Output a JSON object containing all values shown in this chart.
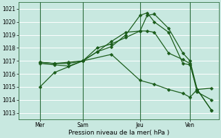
{
  "xlabel": "Pression niveau de la mer( hPa )",
  "bg_color": "#c8e8e0",
  "grid_color": "#ffffff",
  "line_color": "#1a5c1a",
  "ylim": [
    1012.5,
    1021.5
  ],
  "yticks": [
    1013,
    1014,
    1015,
    1016,
    1017,
    1018,
    1019,
    1020,
    1021
  ],
  "xlim": [
    -0.5,
    13.5
  ],
  "xtick_labels": [
    "Mer",
    "Sam",
    "Jeu",
    "Ven"
  ],
  "xtick_positions": [
    1,
    4,
    8,
    11.5
  ],
  "vline_positions": [
    1,
    4,
    8,
    11.5
  ],
  "lines": [
    {
      "x": [
        1,
        2,
        4,
        6,
        8,
        9,
        10,
        11,
        11.5,
        12,
        13
      ],
      "y": [
        1015.0,
        1016.1,
        1017.0,
        1017.5,
        1015.5,
        1015.2,
        1014.8,
        1014.5,
        1014.2,
        1014.8,
        1013.2
      ],
      "marker": "D",
      "markersize": 2.5
    },
    {
      "x": [
        1,
        2,
        3,
        4,
        5,
        6,
        7,
        8,
        8.5,
        9,
        10,
        11,
        11.5,
        12,
        13
      ],
      "y": [
        1016.9,
        1016.8,
        1016.8,
        1017.0,
        1017.7,
        1018.1,
        1019.0,
        1020.5,
        1020.7,
        1020.0,
        1019.2,
        1016.8,
        1016.7,
        1014.8,
        1013.2
      ],
      "marker": "D",
      "markersize": 2.5
    },
    {
      "x": [
        1,
        2,
        3,
        4,
        5,
        6,
        7,
        8,
        8.5,
        9,
        10,
        11,
        11.5,
        12,
        13
      ],
      "y": [
        1016.8,
        1016.7,
        1016.6,
        1017.0,
        1018.0,
        1018.3,
        1018.8,
        1019.3,
        1020.5,
        1020.6,
        1019.5,
        1017.6,
        1017.0,
        1014.8,
        1014.9
      ],
      "marker": "D",
      "markersize": 2.5
    },
    {
      "x": [
        1,
        2,
        3,
        4,
        5,
        6,
        7,
        8,
        8.5,
        9,
        10,
        11,
        11.5,
        12,
        13
      ],
      "y": [
        1016.9,
        1016.8,
        1016.9,
        1017.0,
        1017.7,
        1018.5,
        1019.2,
        1019.3,
        1019.3,
        1019.2,
        1017.6,
        1017.1,
        1016.8,
        1014.6,
        1014.0
      ],
      "marker": "D",
      "markersize": 2.5
    }
  ]
}
